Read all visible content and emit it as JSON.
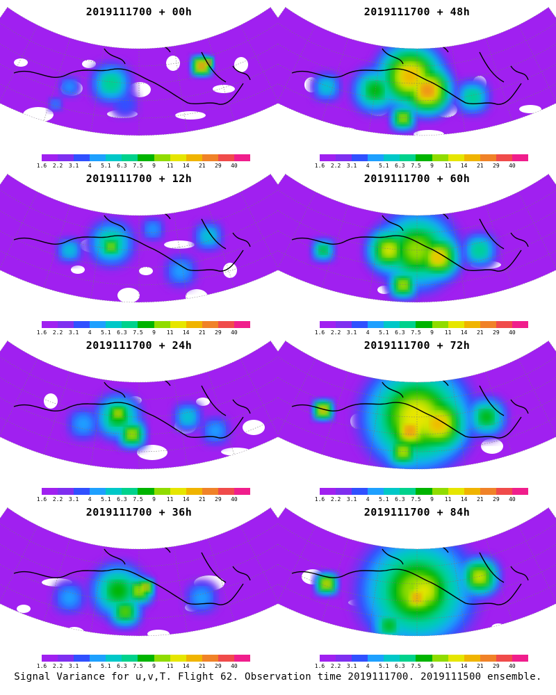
{
  "panels": [
    {
      "title": "2019111700 + 00h"
    },
    {
      "title": "2019111700 + 48h"
    },
    {
      "title": "2019111700 + 12h"
    },
    {
      "title": "2019111700 + 60h"
    },
    {
      "title": "2019111700 + 24h"
    },
    {
      "title": "2019111700 + 72h"
    },
    {
      "title": "2019111700 + 36h"
    },
    {
      "title": "2019111700 + 84h"
    }
  ],
  "colorbar": {
    "ticks": [
      "1.6",
      "2.2",
      "3.1",
      "4",
      "5.1",
      "6.3",
      "7.5",
      "9",
      "11",
      "14",
      "21",
      "29",
      "40"
    ],
    "colors": [
      "#a020f0",
      "#7f2ff0",
      "#3050ff",
      "#1ea0ff",
      "#00c8c8",
      "#00d28c",
      "#00b400",
      "#90dc00",
      "#e6e600",
      "#f0b400",
      "#f08228",
      "#f04b4b",
      "#f01e8c"
    ]
  },
  "footer": "Signal Variance for u,v,T. Flight 62. Observation time 2019111700. 2019111500 ensemble."
}
